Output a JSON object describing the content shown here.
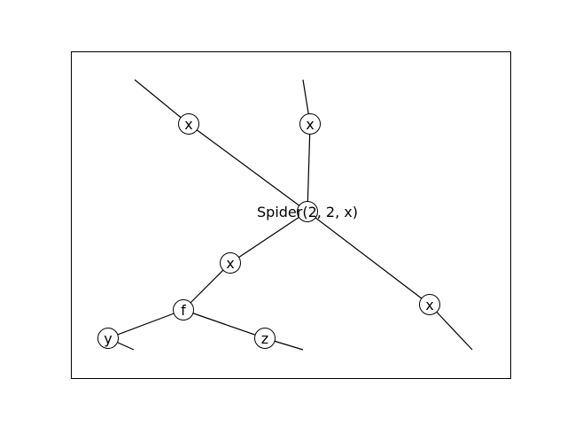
{
  "diagram": {
    "center": {
      "label": "Spider(2, 2, x)"
    },
    "nodes": [
      {
        "id": "x_top_left",
        "label": "x"
      },
      {
        "id": "x_top",
        "label": "x"
      },
      {
        "id": "x_mid",
        "label": "x"
      },
      {
        "id": "x_right",
        "label": "x"
      },
      {
        "id": "f",
        "label": "f"
      },
      {
        "id": "y",
        "label": "y"
      },
      {
        "id": "z",
        "label": "z"
      }
    ],
    "edges": [
      {
        "from": "center",
        "to": "x_top_left",
        "continues": true
      },
      {
        "from": "center",
        "to": "x_top",
        "continues": true
      },
      {
        "from": "center",
        "to": "x_mid",
        "continues": false
      },
      {
        "from": "center",
        "to": "x_right",
        "continues": true
      },
      {
        "from": "x_mid",
        "to": "f",
        "continues": false
      },
      {
        "from": "f",
        "to": "y",
        "continues": true
      },
      {
        "from": "f",
        "to": "z",
        "continues": true
      }
    ]
  }
}
